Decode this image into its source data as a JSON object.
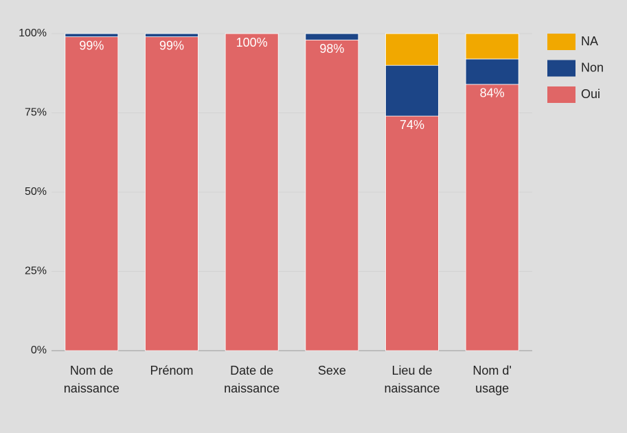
{
  "chart_data": {
    "type": "stacked_bar",
    "categories": [
      "Nom de naissance",
      "Prénom",
      "Date de naissance",
      "Sexe",
      "Lieu de naissance",
      "Nom d' usage"
    ],
    "series": [
      {
        "name": "Oui",
        "color": "#e06666",
        "values": [
          99,
          99,
          100,
          98,
          74,
          84
        ],
        "value_labels": [
          "99%",
          "99%",
          "100%",
          "98%",
          "74%",
          "84%"
        ]
      },
      {
        "name": "Non",
        "color": "#1c4587",
        "values": [
          1,
          1,
          0,
          2,
          16,
          8
        ]
      },
      {
        "name": "NA",
        "color": "#f1a800",
        "values": [
          0,
          0,
          0,
          0,
          10,
          8
        ]
      }
    ],
    "ylim": [
      0,
      100
    ],
    "yticks": [
      {
        "value": 0,
        "label": "0%"
      },
      {
        "value": 25,
        "label": "25%"
      },
      {
        "value": 50,
        "label": "50%"
      },
      {
        "value": 75,
        "label": "75%"
      },
      {
        "value": 100,
        "label": "100%"
      }
    ],
    "grid": true,
    "legend": "right"
  }
}
